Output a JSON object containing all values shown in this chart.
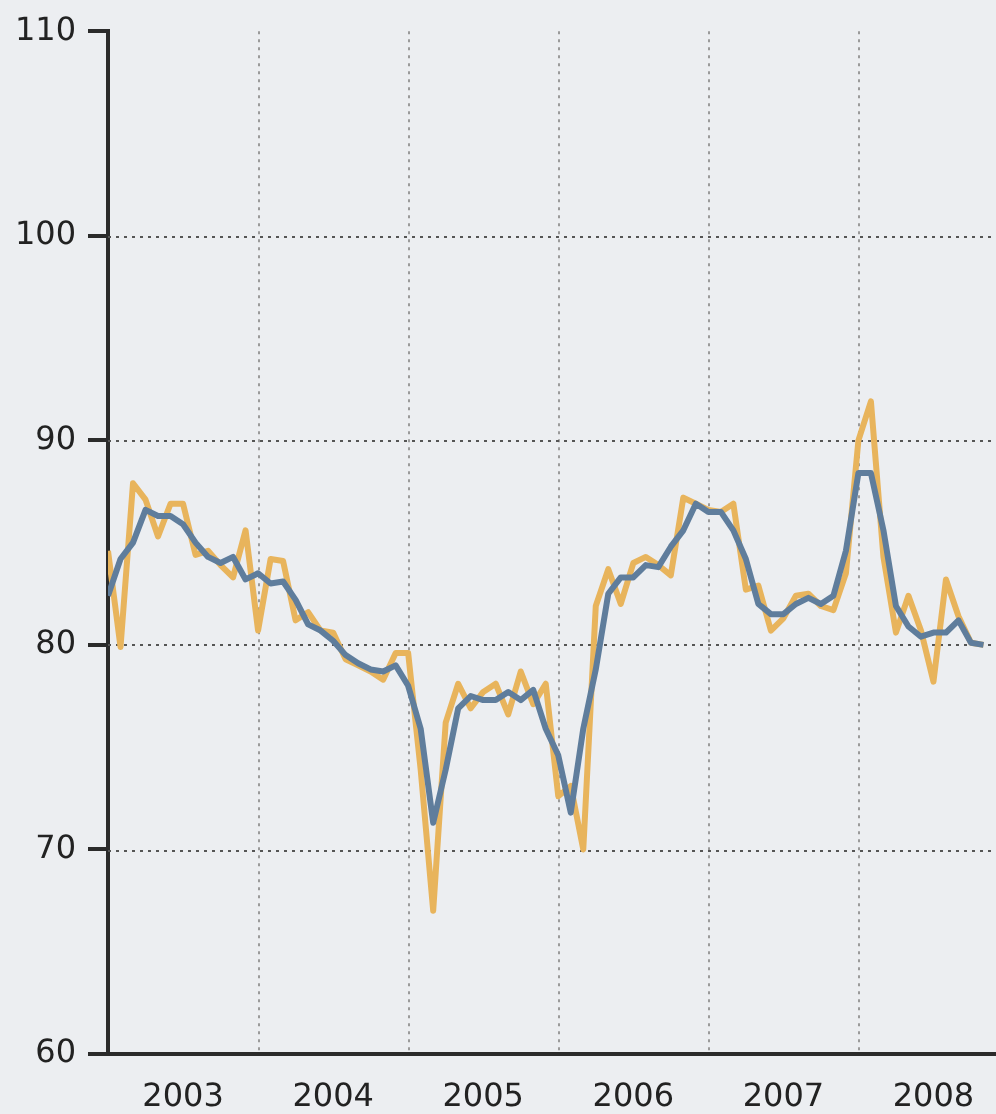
{
  "chart_data": {
    "type": "line",
    "x": [
      "2003-01",
      "2003-02",
      "2003-03",
      "2003-04",
      "2003-05",
      "2003-06",
      "2003-07",
      "2003-08",
      "2003-09",
      "2003-10",
      "2003-11",
      "2003-12",
      "2004-01",
      "2004-02",
      "2004-03",
      "2004-04",
      "2004-05",
      "2004-06",
      "2004-07",
      "2004-08",
      "2004-09",
      "2004-10",
      "2004-11",
      "2004-12",
      "2005-01",
      "2005-02",
      "2005-03",
      "2005-04",
      "2005-05",
      "2005-06",
      "2005-07",
      "2005-08",
      "2005-09",
      "2005-10",
      "2005-11",
      "2005-12",
      "2006-01",
      "2006-02",
      "2006-03",
      "2006-04",
      "2006-05",
      "2006-06",
      "2006-07",
      "2006-08",
      "2006-09",
      "2006-10",
      "2006-11",
      "2006-12",
      "2007-01",
      "2007-02",
      "2007-03",
      "2007-04",
      "2007-05",
      "2007-06",
      "2007-07",
      "2007-08",
      "2007-09",
      "2007-10",
      "2007-11",
      "2007-12",
      "2008-01",
      "2008-02",
      "2008-03",
      "2008-04",
      "2008-05",
      "2008-06",
      "2008-07",
      "2008-08",
      "2008-09",
      "2008-10",
      "2008-11"
    ],
    "series": [
      {
        "color": "#e8b45c",
        "values": [
          84.6,
          79.9,
          87.9,
          87.1,
          85.3,
          86.9,
          86.9,
          84.4,
          84.6,
          83.9,
          83.3,
          85.6,
          80.7,
          84.2,
          84.1,
          81.2,
          81.6,
          80.7,
          80.6,
          79.3,
          79.0,
          78.7,
          78.3,
          79.6,
          79.6,
          73.9,
          67.0,
          76.2,
          78.1,
          76.9,
          77.7,
          78.1,
          76.6,
          78.7,
          77.1,
          78.1,
          72.6,
          73.1,
          70.0,
          81.9,
          83.7,
          82.0,
          84.0,
          84.3,
          83.9,
          83.4,
          87.2,
          86.9,
          86.6,
          86.5,
          86.9,
          82.7,
          82.9,
          80.7,
          81.3,
          82.4,
          82.5,
          81.9,
          81.7,
          83.5,
          90.0,
          91.9,
          84.3,
          80.6,
          82.4,
          80.7,
          78.2,
          83.2,
          81.4,
          80.1,
          80.0
        ]
      },
      {
        "color": "#5f7d9c",
        "values": [
          82.4,
          84.2,
          85.0,
          86.6,
          86.3,
          86.3,
          85.9,
          85.0,
          84.3,
          84.0,
          84.3,
          83.2,
          83.5,
          83.0,
          83.1,
          82.2,
          81.0,
          80.7,
          80.2,
          79.5,
          79.1,
          78.8,
          78.7,
          79.0,
          78.0,
          75.9,
          71.3,
          73.9,
          76.9,
          77.5,
          77.3,
          77.3,
          77.7,
          77.3,
          77.8,
          75.9,
          74.6,
          71.8,
          75.9,
          78.8,
          82.5,
          83.3,
          83.3,
          83.9,
          83.8,
          84.8,
          85.6,
          86.9,
          86.5,
          86.5,
          85.6,
          84.2,
          82.0,
          81.5,
          81.5,
          82.0,
          82.3,
          82.0,
          82.4,
          84.6,
          88.4,
          88.4,
          85.6,
          81.9,
          80.9,
          80.4,
          80.6,
          80.6,
          81.2,
          80.1,
          80.0
        ]
      }
    ],
    "xlim": [
      "2003-01",
      "2008-12"
    ],
    "xticks": [
      {
        "value": "2003-07",
        "label": "2003"
      },
      {
        "value": "2004-01",
        "label": null
      },
      {
        "value": "2004-07",
        "label": "2004"
      },
      {
        "value": "2005-01",
        "label": null
      },
      {
        "value": "2005-07",
        "label": "2005"
      },
      {
        "value": "2006-01",
        "label": null
      },
      {
        "value": "2006-07",
        "label": "2006"
      },
      {
        "value": "2007-01",
        "label": null
      },
      {
        "value": "2007-07",
        "label": "2007"
      },
      {
        "value": "2008-01",
        "label": null
      },
      {
        "value": "2008-07",
        "label": "2008"
      }
    ],
    "ylim": [
      60,
      110
    ],
    "yticks": [
      60,
      70,
      80,
      90,
      100,
      110
    ],
    "grid": true,
    "legend": false,
    "marker": "none",
    "line_style": "solid"
  }
}
